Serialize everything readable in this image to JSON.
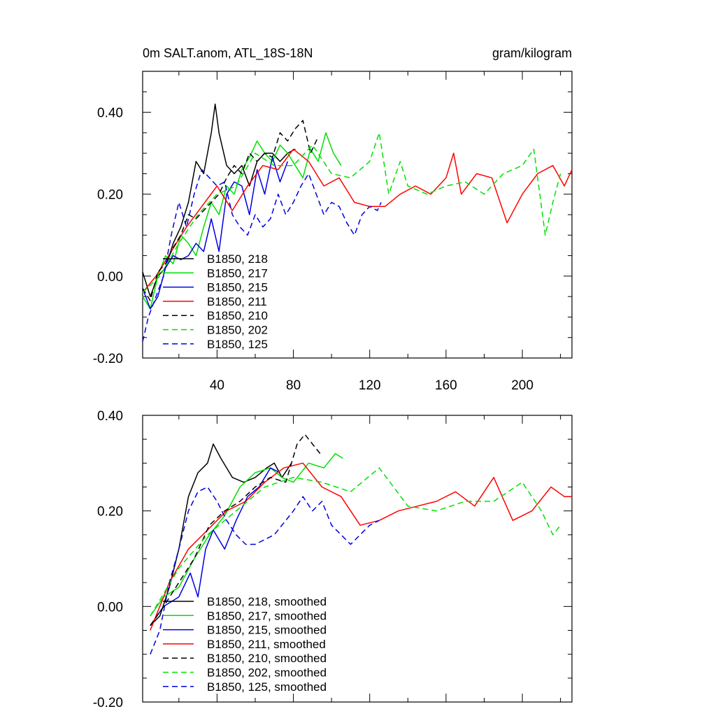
{
  "chart_data": [
    {
      "type": "line",
      "title": "0m SALT.anom, ATL_18S-18N",
      "units": "gram/kilogram",
      "xlim": [
        1,
        226
      ],
      "ylim": [
        -0.2,
        0.5
      ],
      "xticks": [
        40,
        80,
        120,
        160,
        200
      ],
      "xtick_labels": [
        "40",
        "80",
        "120",
        "160",
        "200"
      ],
      "yticks": [
        -0.2,
        0.0,
        0.2,
        0.4
      ],
      "ytick_labels": [
        "-0.20",
        "0.00",
        "0.20",
        "0.40"
      ],
      "legend_position": "lower-left",
      "series": [
        {
          "name": "B1850, 218",
          "color": "#000000",
          "dash": "solid",
          "x": [
            1,
            5,
            9,
            13,
            17,
            21,
            25,
            29,
            33,
            37,
            39,
            41,
            45,
            49,
            53,
            57,
            61,
            65,
            69,
            73,
            77,
            81
          ],
          "y": [
            0.01,
            -0.05,
            0.0,
            0.02,
            0.08,
            0.12,
            0.18,
            0.28,
            0.25,
            0.35,
            0.42,
            0.35,
            0.27,
            0.25,
            0.27,
            0.22,
            0.28,
            0.3,
            0.3,
            0.28,
            0.3,
            0.31
          ]
        },
        {
          "name": "B1850, 217",
          "color": "#00e000",
          "dash": "solid",
          "x": [
            1,
            5,
            9,
            13,
            17,
            21,
            25,
            29,
            33,
            37,
            41,
            45,
            49,
            53,
            57,
            61,
            65,
            69,
            73,
            77,
            81,
            85,
            89,
            93,
            97,
            101,
            105
          ],
          "y": [
            -0.05,
            -0.08,
            0.0,
            0.05,
            0.03,
            0.1,
            0.08,
            0.05,
            0.12,
            0.18,
            0.15,
            0.22,
            0.2,
            0.26,
            0.29,
            0.33,
            0.3,
            0.28,
            0.32,
            0.3,
            0.27,
            0.24,
            0.31,
            0.28,
            0.35,
            0.3,
            0.27
          ]
        },
        {
          "name": "B1850, 215",
          "color": "#0000e0",
          "dash": "solid",
          "x": [
            1,
            5,
            9,
            13,
            17,
            21,
            25,
            29,
            33,
            37,
            41,
            45,
            49,
            53,
            57,
            61,
            65,
            69,
            73,
            77
          ],
          "y": [
            -0.03,
            -0.08,
            -0.05,
            0.02,
            0.05,
            0.04,
            0.05,
            0.08,
            0.06,
            0.14,
            0.06,
            0.2,
            0.23,
            0.22,
            0.15,
            0.26,
            0.2,
            0.29,
            0.23,
            0.28
          ]
        },
        {
          "name": "B1850, 211",
          "color": "#ff0000",
          "dash": "solid",
          "x": [
            1,
            8,
            16,
            24,
            32,
            40,
            48,
            56,
            64,
            72,
            80,
            88,
            96,
            104,
            112,
            120,
            128,
            136,
            144,
            152,
            160,
            164,
            168,
            176,
            184,
            192,
            200,
            208,
            216,
            222,
            226
          ],
          "y": [
            -0.04,
            0.0,
            0.06,
            0.12,
            0.17,
            0.22,
            0.16,
            0.22,
            0.27,
            0.26,
            0.31,
            0.28,
            0.22,
            0.24,
            0.18,
            0.17,
            0.17,
            0.2,
            0.22,
            0.2,
            0.24,
            0.3,
            0.2,
            0.25,
            0.24,
            0.13,
            0.2,
            0.25,
            0.27,
            0.22,
            0.26
          ]
        },
        {
          "name": "B1850, 210",
          "color": "#000000",
          "dash": "dashed",
          "x": [
            1,
            5,
            9,
            13,
            17,
            21,
            25,
            29,
            33,
            37,
            41,
            45,
            49,
            53,
            57,
            61,
            65,
            69,
            73,
            77,
            81,
            85,
            89,
            93
          ],
          "y": [
            -0.03,
            -0.06,
            0.01,
            0.03,
            0.07,
            0.1,
            0.15,
            0.14,
            0.16,
            0.18,
            0.2,
            0.24,
            0.27,
            0.25,
            0.3,
            0.28,
            0.3,
            0.29,
            0.35,
            0.33,
            0.36,
            0.38,
            0.3,
            0.34
          ]
        },
        {
          "name": "B1850, 202",
          "color": "#00e000",
          "dash": "dashed",
          "x": [
            1,
            10,
            20,
            30,
            40,
            50,
            60,
            70,
            80,
            90,
            100,
            110,
            120,
            125,
            130,
            136,
            140,
            150,
            160,
            170,
            180,
            190,
            200,
            206,
            212,
            216,
            220
          ],
          "y": [
            -0.04,
            0.0,
            0.08,
            0.15,
            0.2,
            0.22,
            0.3,
            0.27,
            0.27,
            0.32,
            0.25,
            0.24,
            0.28,
            0.35,
            0.2,
            0.28,
            0.22,
            0.2,
            0.22,
            0.23,
            0.2,
            0.25,
            0.27,
            0.31,
            0.1,
            0.18,
            0.25
          ]
        },
        {
          "name": "B1850, 125",
          "color": "#0000e0",
          "dash": "dashed",
          "x": [
            1,
            4,
            8,
            12,
            16,
            20,
            24,
            28,
            32,
            36,
            40,
            44,
            48,
            52,
            56,
            60,
            64,
            68,
            72,
            76,
            80,
            84,
            88,
            92,
            96,
            100,
            104,
            108,
            112,
            116,
            120,
            124,
            126
          ],
          "y": [
            -0.16,
            -0.1,
            -0.05,
            0.0,
            0.1,
            0.18,
            0.12,
            0.2,
            0.26,
            0.24,
            0.22,
            0.23,
            0.15,
            0.12,
            0.1,
            0.15,
            0.12,
            0.14,
            0.2,
            0.15,
            0.18,
            0.22,
            0.25,
            0.2,
            0.15,
            0.18,
            0.17,
            0.13,
            0.1,
            0.15,
            0.17,
            0.16,
            0.18
          ]
        }
      ]
    },
    {
      "type": "line",
      "title": "",
      "xlim": [
        1,
        226
      ],
      "ylim": [
        -0.2,
        0.4
      ],
      "yticks": [
        -0.2,
        0.0,
        0.2,
        0.4
      ],
      "ytick_labels": [
        "-0.20",
        "0.00",
        "0.20",
        "0.40"
      ],
      "legend_position": "lower-left",
      "series": [
        {
          "name": "B1850, 218, smoothed",
          "color": "#000000",
          "dash": "solid",
          "x": [
            5,
            10,
            15,
            20,
            25,
            30,
            35,
            38,
            42,
            48,
            54,
            60,
            66,
            70,
            74,
            79
          ],
          "y": [
            -0.04,
            -0.02,
            0.04,
            0.12,
            0.23,
            0.28,
            0.3,
            0.34,
            0.31,
            0.27,
            0.26,
            0.27,
            0.29,
            0.3,
            0.27,
            0.3
          ]
        },
        {
          "name": "B1850, 217, smoothed",
          "color": "#00e000",
          "dash": "solid",
          "x": [
            5,
            12,
            20,
            28,
            36,
            44,
            52,
            60,
            68,
            74,
            80,
            88,
            96,
            102,
            106
          ],
          "y": [
            -0.02,
            0.02,
            0.04,
            0.1,
            0.15,
            0.19,
            0.25,
            0.28,
            0.29,
            0.27,
            0.26,
            0.3,
            0.29,
            0.32,
            0.31
          ]
        },
        {
          "name": "B1850, 215, smoothed",
          "color": "#0000e0",
          "dash": "solid",
          "x": [
            5,
            12,
            20,
            26,
            30,
            34,
            38,
            44,
            50,
            56,
            62,
            68,
            73
          ],
          "y": [
            -0.04,
            0.0,
            0.02,
            0.07,
            0.02,
            0.12,
            0.16,
            0.12,
            0.18,
            0.23,
            0.25,
            0.29,
            0.28
          ]
        },
        {
          "name": "B1850, 211, smoothed",
          "color": "#ff0000",
          "dash": "solid",
          "x": [
            5,
            15,
            25,
            35,
            45,
            55,
            65,
            75,
            85,
            95,
            105,
            115,
            125,
            135,
            145,
            155,
            165,
            175,
            185,
            195,
            205,
            215,
            222,
            226
          ],
          "y": [
            -0.05,
            0.05,
            0.12,
            0.16,
            0.2,
            0.22,
            0.26,
            0.29,
            0.3,
            0.25,
            0.23,
            0.17,
            0.18,
            0.2,
            0.21,
            0.22,
            0.24,
            0.21,
            0.27,
            0.18,
            0.2,
            0.25,
            0.23,
            0.23
          ]
        },
        {
          "name": "B1850, 210, smoothed",
          "color": "#000000",
          "dash": "dashed",
          "x": [
            5,
            12,
            20,
            28,
            36,
            44,
            52,
            60,
            68,
            76,
            82,
            86,
            90,
            94
          ],
          "y": [
            -0.04,
            0.0,
            0.05,
            0.1,
            0.17,
            0.2,
            0.22,
            0.25,
            0.27,
            0.26,
            0.34,
            0.36,
            0.34,
            0.32
          ]
        },
        {
          "name": "B1850, 202, smoothed",
          "color": "#00e000",
          "dash": "dashed",
          "x": [
            5,
            20,
            35,
            50,
            65,
            80,
            95,
            110,
            125,
            140,
            155,
            170,
            185,
            200,
            210,
            216,
            220
          ],
          "y": [
            -0.02,
            0.08,
            0.15,
            0.2,
            0.25,
            0.27,
            0.26,
            0.24,
            0.29,
            0.21,
            0.2,
            0.22,
            0.22,
            0.26,
            0.2,
            0.15,
            0.17
          ]
        },
        {
          "name": "B1850, 125, smoothed",
          "color": "#0000e0",
          "dash": "dashed",
          "x": [
            5,
            10,
            15,
            20,
            25,
            30,
            35,
            40,
            45,
            50,
            55,
            60,
            70,
            80,
            85,
            90,
            95,
            100,
            105,
            110,
            115,
            120,
            125
          ],
          "y": [
            -0.1,
            -0.05,
            0.05,
            0.12,
            0.2,
            0.24,
            0.25,
            0.22,
            0.18,
            0.15,
            0.13,
            0.13,
            0.15,
            0.2,
            0.23,
            0.2,
            0.22,
            0.17,
            0.15,
            0.13,
            0.15,
            0.17,
            0.18
          ]
        }
      ]
    }
  ]
}
